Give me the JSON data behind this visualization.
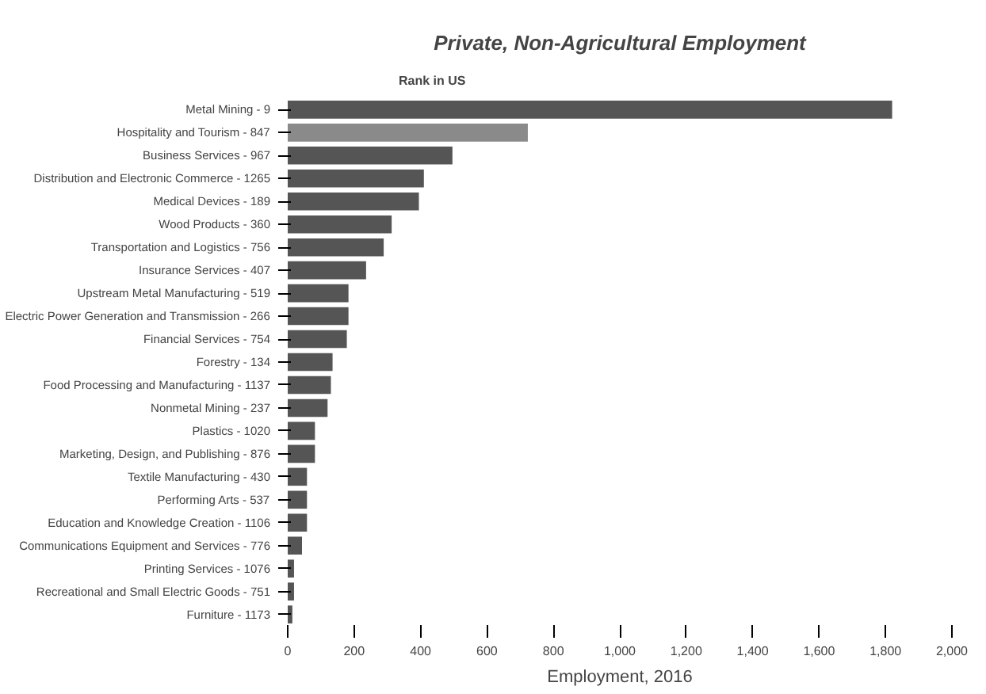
{
  "chart_data": {
    "type": "bar",
    "orientation": "horizontal",
    "title": "Private, Non-Agricultural Employment",
    "xlabel": "Employment, 2016",
    "annotations": [
      "Rank in US"
    ],
    "categories": [
      "Metal Mining - 9",
      "Hospitality and Tourism - 847",
      "Business Services - 967",
      "Distribution and Electronic Commerce - 1265",
      "Medical Devices - 189",
      "Wood Products - 360",
      "Transportation and Logistics - 756",
      "Insurance Services - 407",
      "Upstream Metal Manufacturing - 519",
      "Electric Power Generation and Transmission - 266",
      "Financial Services - 754",
      "Forestry - 134",
      "Food Processing and Manufacturing - 1137",
      "Nonmetal Mining - 237",
      "Plastics - 1020",
      "Marketing, Design, and Publishing - 876",
      "Textile Manufacturing - 430",
      "Performing Arts - 537",
      "Education and Knowledge Creation - 1106",
      "Communications Equipment and Services - 776",
      "Printing Services - 1076",
      "Recreational and Small Electric Goods - 751",
      "Furniture - 1173"
    ],
    "values": [
      1820,
      723,
      496,
      410,
      395,
      313,
      289,
      236,
      183,
      183,
      178,
      135,
      130,
      120,
      82,
      82,
      58,
      58,
      58,
      43,
      19,
      19,
      14
    ],
    "colors": [
      "#555555",
      "#8a8a8a",
      "#555555",
      "#555555",
      "#555555",
      "#555555",
      "#555555",
      "#555555",
      "#555555",
      "#555555",
      "#555555",
      "#555555",
      "#555555",
      "#555555",
      "#555555",
      "#555555",
      "#555555",
      "#555555",
      "#555555",
      "#555555",
      "#555555",
      "#555555",
      "#555555"
    ],
    "xlim": [
      0,
      2000
    ],
    "xticks": [
      0,
      200,
      400,
      600,
      800,
      {
        "value": 1000,
        "label": "1,000"
      },
      {
        "value": 1200,
        "label": "1,200"
      },
      {
        "value": 1400,
        "label": "1,400"
      },
      {
        "value": 1600,
        "label": "1,600"
      },
      {
        "value": 1800,
        "label": "1,800"
      },
      {
        "value": 2000,
        "label": "2,000"
      }
    ],
    "grid": false
  }
}
